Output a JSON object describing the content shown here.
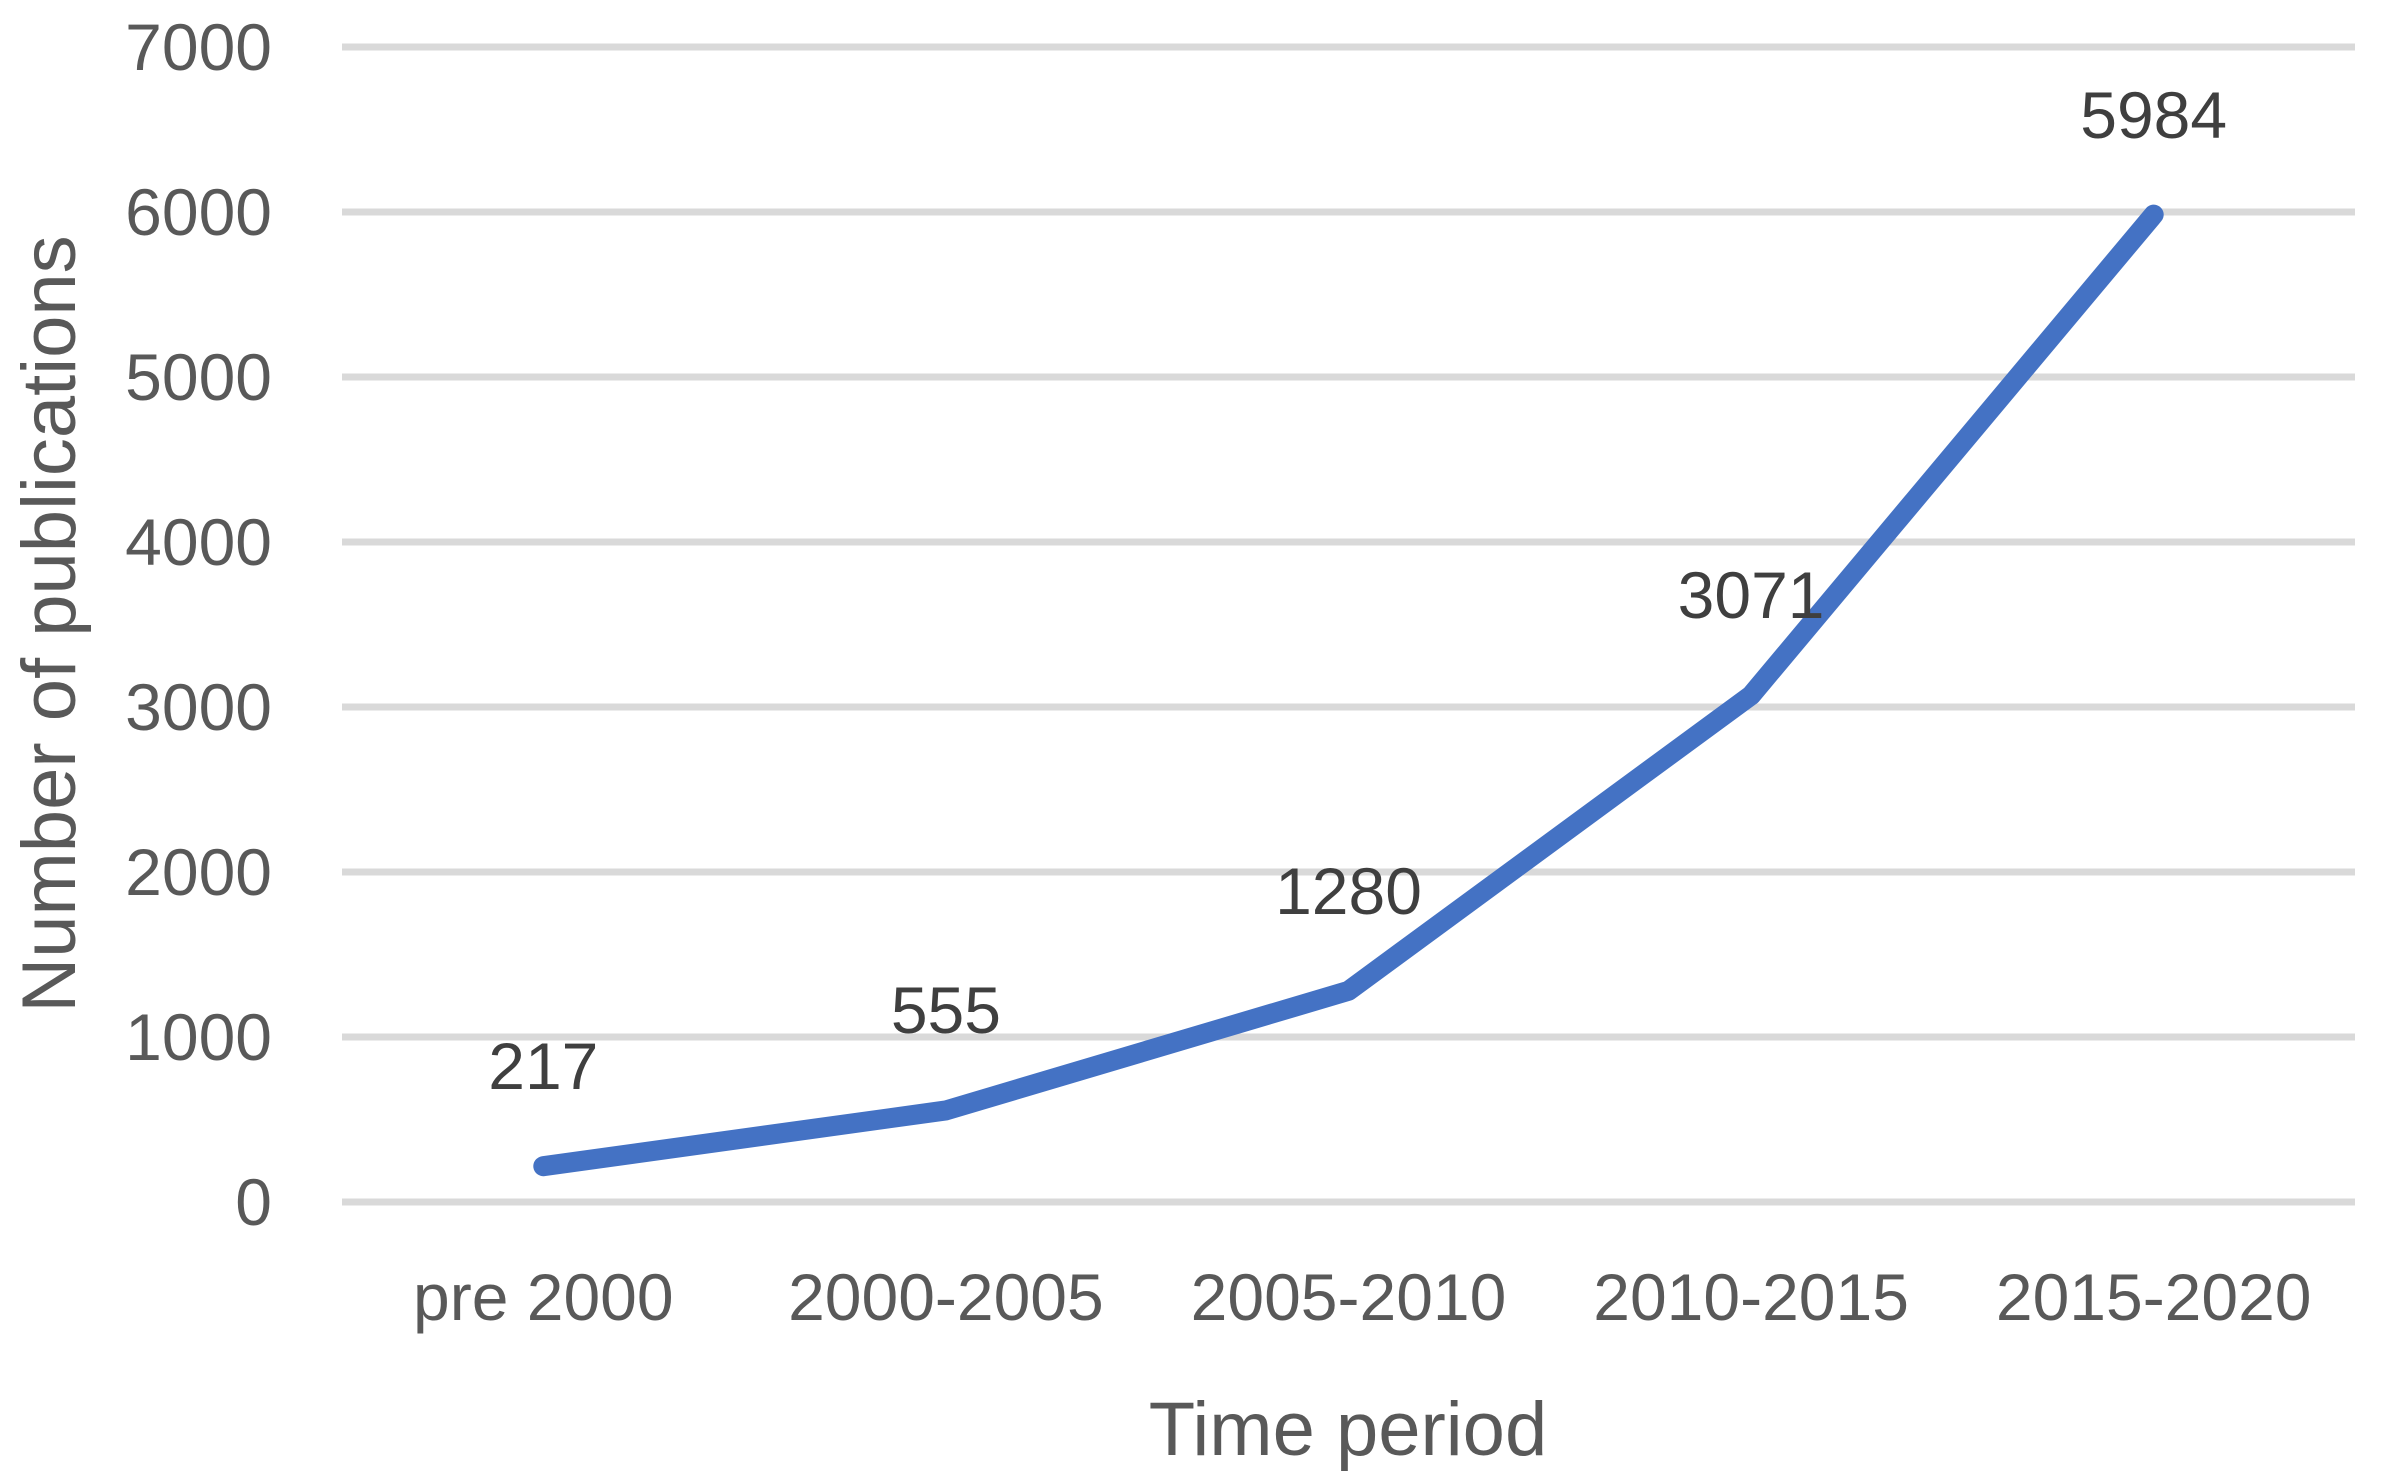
{
  "chart_data": {
    "type": "line",
    "title": "",
    "categories": [
      "pre 2000",
      "2000-2005",
      "2005-2010",
      "2010-2015",
      "2015-2020"
    ],
    "series": [
      {
        "name": "Number of publications",
        "values": [
          217,
          555,
          1280,
          3071,
          5984
        ],
        "data_labels": [
          "217",
          "555",
          "1280",
          "3071",
          "5984"
        ]
      }
    ],
    "xlabel": "Time period",
    "ylabel": "Number of publications",
    "ylim": [
      0,
      7000
    ],
    "ytick_interval": 1000,
    "yticks": [
      "0",
      "1000",
      "2000",
      "3000",
      "4000",
      "5000",
      "6000",
      "7000"
    ],
    "grid": true,
    "legend": false,
    "data_labels_position": "above",
    "colors": {
      "line": "#4472C4",
      "gridline": "#D9D9D9",
      "axis_text": "#595959",
      "data_label_text": "#3F3F3F",
      "background": "#FFFFFF"
    }
  }
}
